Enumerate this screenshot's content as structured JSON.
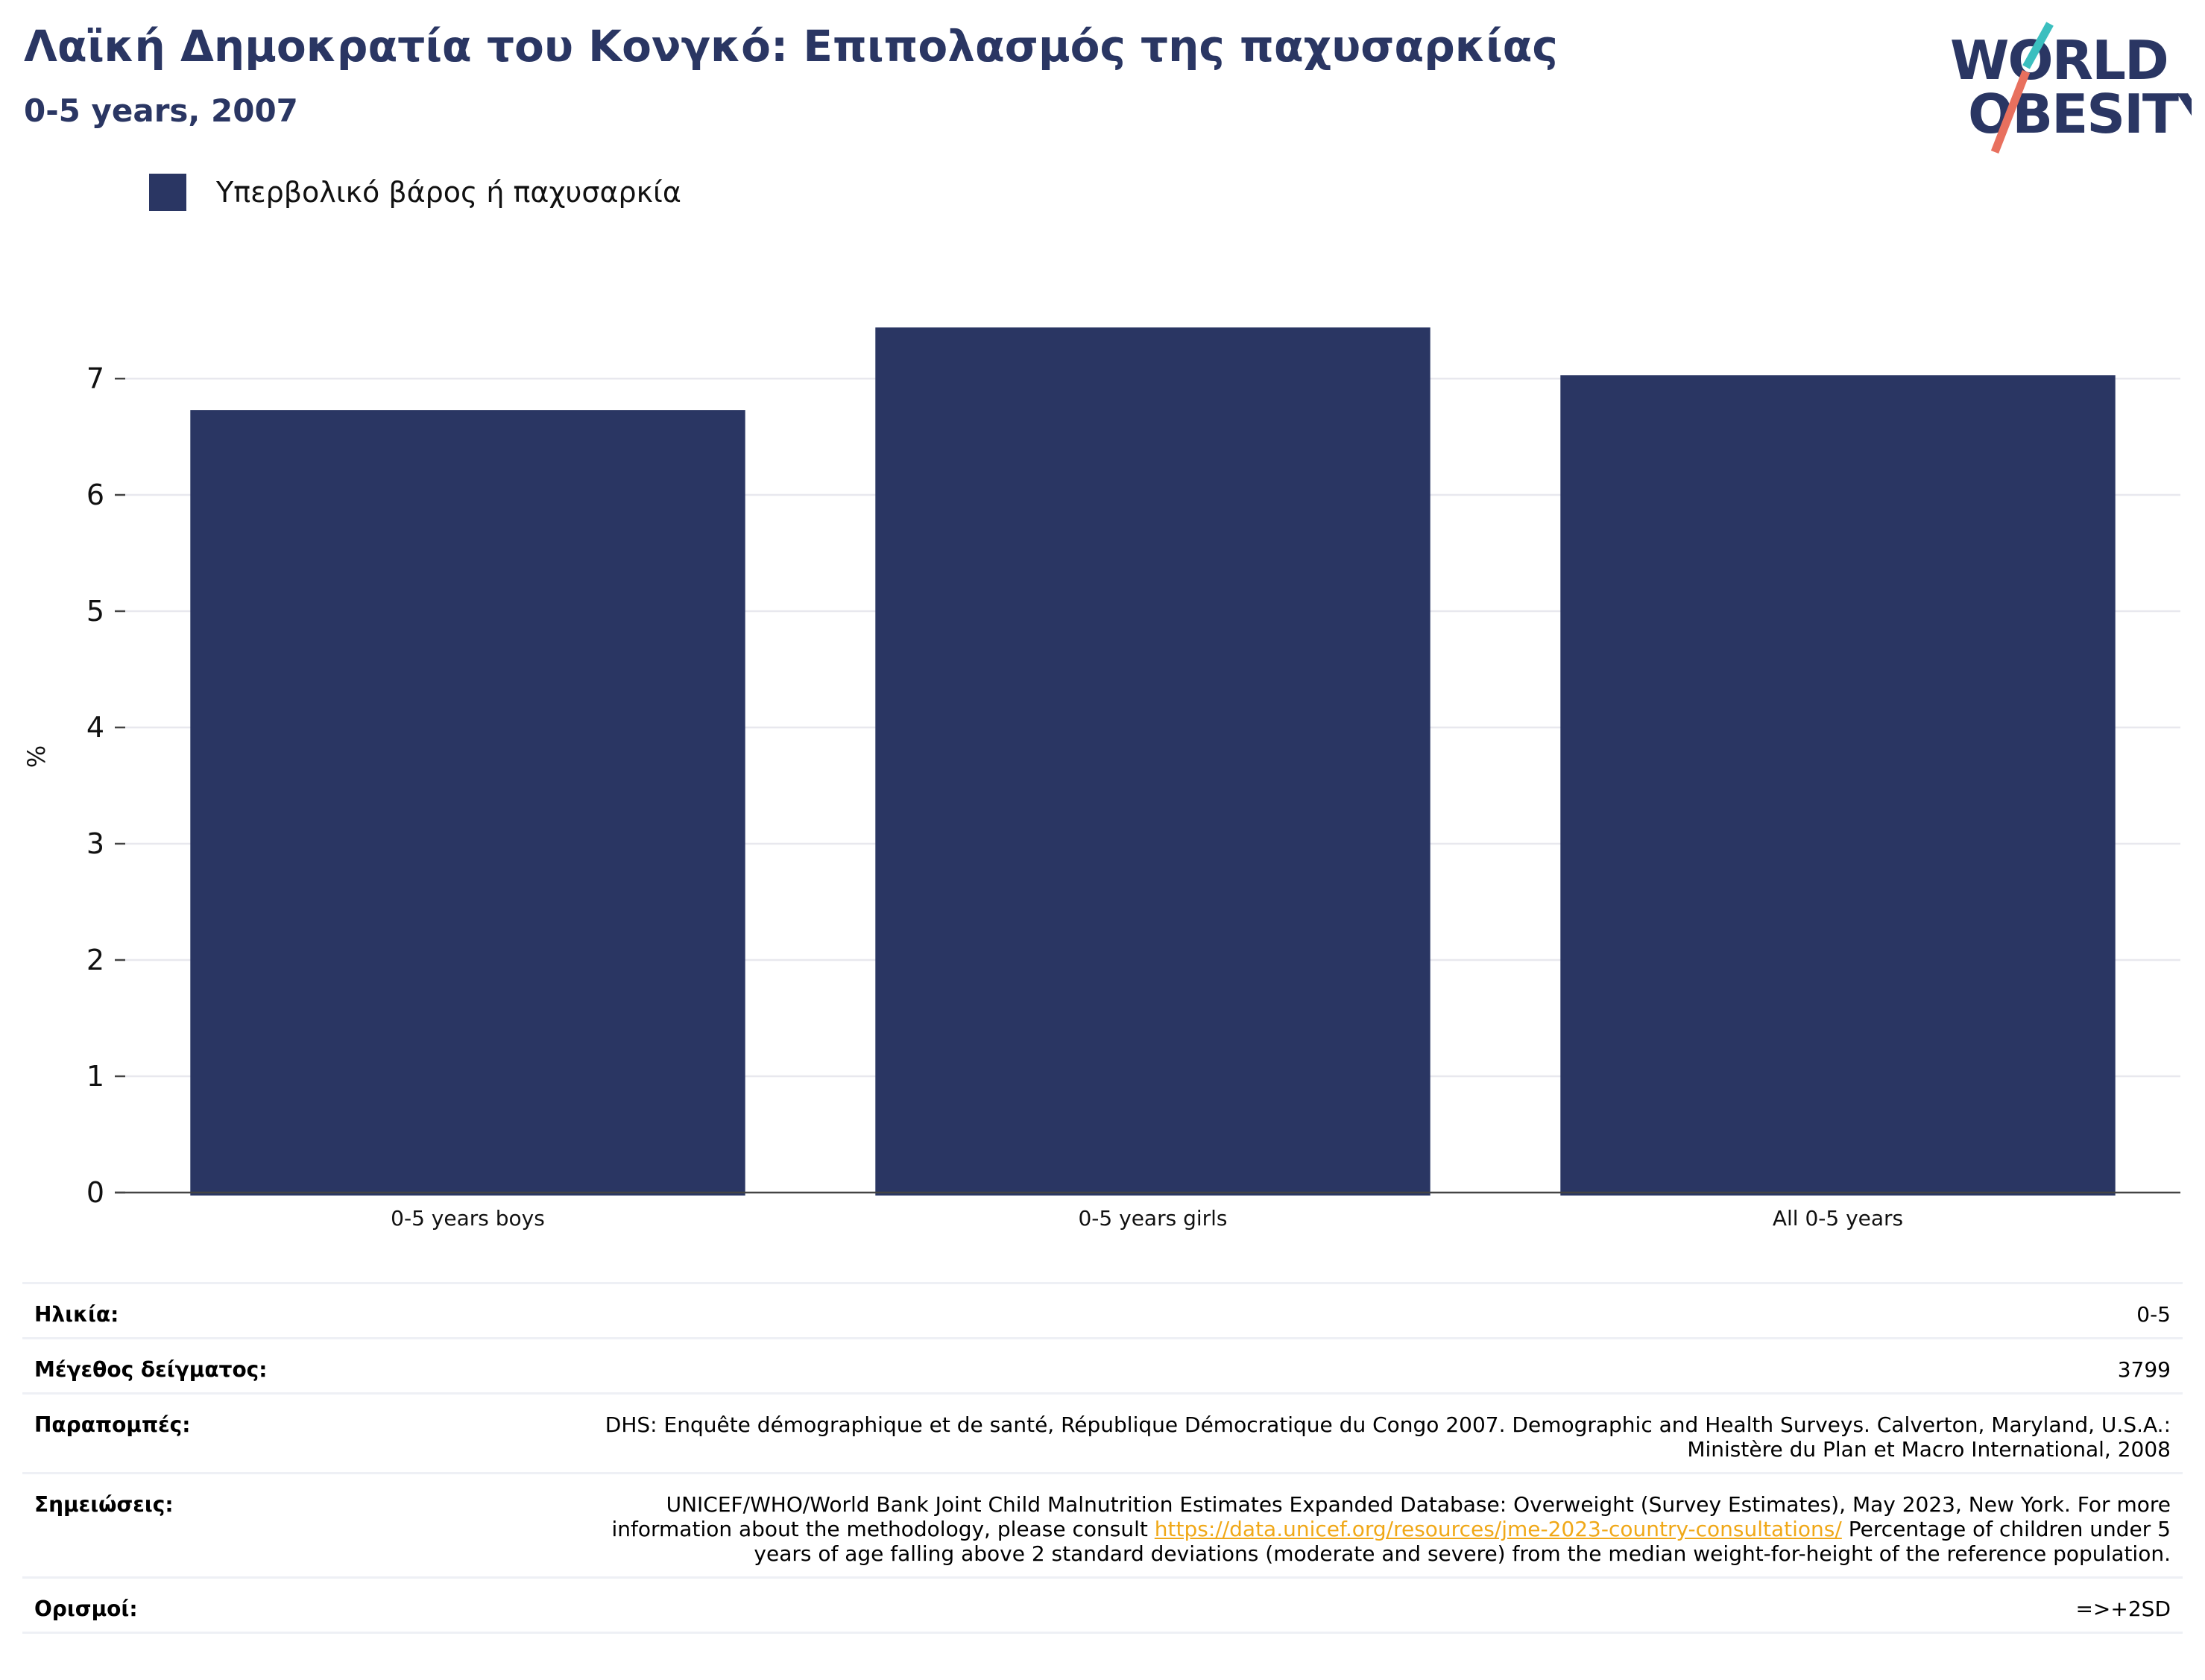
{
  "header": {
    "title": "Λαϊκή Δημοκρατία του Κονγκό: Επιπολασμός της παχυσαρκίας",
    "subtitle": "0-5 years, 2007"
  },
  "logo": {
    "line1": "WORLD",
    "line2": "OBESITY",
    "text_color": "#2a3663",
    "slash_top_color": "#3bbfbf",
    "slash_bottom_color": "#e8705e"
  },
  "legend": {
    "items": [
      {
        "label": "Υπερβολικό βάρος ή παχυσαρκία",
        "color": "#2a3663"
      }
    ]
  },
  "chart_data": {
    "type": "bar",
    "categories": [
      "0-5 years boys",
      "0-5 years girls",
      "All 0-5 years"
    ],
    "series": [
      {
        "name": "Υπερβολικό βάρος ή παχυσαρκία",
        "values": [
          6.73,
          7.44,
          7.03
        ],
        "color": "#2a3663"
      }
    ],
    "ylabel": "%",
    "ylim": [
      0,
      7.5
    ],
    "yticks": [
      0,
      1,
      2,
      3,
      4,
      5,
      6,
      7
    ],
    "grid": true,
    "legend_position": "top-left"
  },
  "info": {
    "age_label": "Ηλικία:",
    "age_value": "0-5",
    "sample_label": "Μέγεθος δείγματος:",
    "sample_value": "3799",
    "refs_label": "Παραπομπές:",
    "refs_value": "DHS: Enquête démographique et de santé, République Démocratique du Congo 2007. Demographic and Health Surveys. Calverton, Maryland, U.S.A.: Ministère du Plan et Macro International, 2008",
    "notes_label": "Σημειώσεις:",
    "notes_before": "UNICEF/WHO/World Bank Joint Child Malnutrition Estimates Expanded Database: Overweight (Survey Estimates), May 2023, New York. For more information about the methodology, please consult ",
    "notes_link": "https://data.unicef.org/resources/jme-2023-country-consultations/",
    "notes_after": " Percentage of children under 5 years of age falling above 2 standard deviations (moderate and severe) from the median weight-for-height of the reference population.",
    "defs_label": "Ορισμοί:",
    "defs_value": "=>+2SD"
  }
}
